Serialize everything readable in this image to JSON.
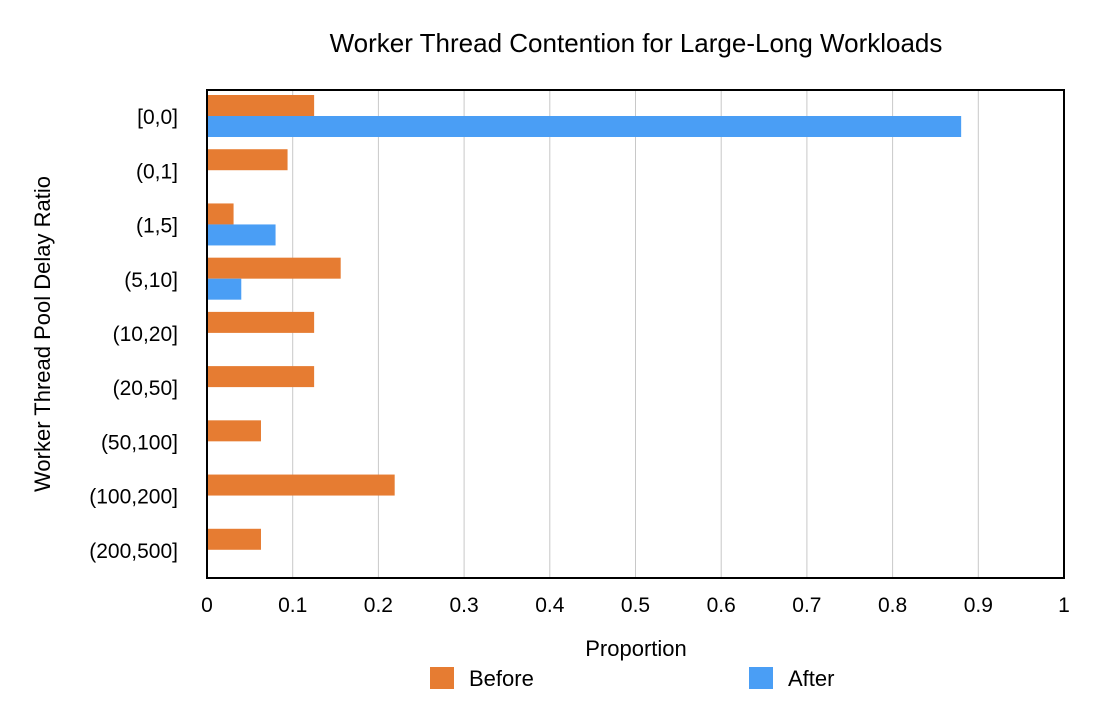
{
  "chart_data": {
    "type": "bar",
    "orientation": "horizontal",
    "title": "Worker Thread Contention for Large-Long Workloads",
    "xlabel": "Proportion",
    "ylabel": "Worker Thread Pool Delay Ratio",
    "categories": [
      "[0,0]",
      "(0,1]",
      "(1,5]",
      "(5,10]",
      "(10,20]",
      "(20,50]",
      "(50,100]",
      "(100,200]",
      "(200,500]"
    ],
    "x_ticks": [
      "0",
      "0.1",
      "0.2",
      "0.3",
      "0.4",
      "0.5",
      "0.6",
      "0.7",
      "0.8",
      "0.9",
      "1"
    ],
    "xlim": [
      0,
      1
    ],
    "grid": "vertical",
    "legend_position": "bottom",
    "series": [
      {
        "name": "Before",
        "color": "#E67C32",
        "values": [
          0.125,
          0.094,
          0.031,
          0.156,
          0.125,
          0.125,
          0.063,
          0.219,
          0.063
        ]
      },
      {
        "name": "After",
        "color": "#4A9EF5",
        "values": [
          0.88,
          0,
          0.08,
          0.04,
          0,
          0,
          0,
          0,
          0
        ]
      }
    ]
  }
}
